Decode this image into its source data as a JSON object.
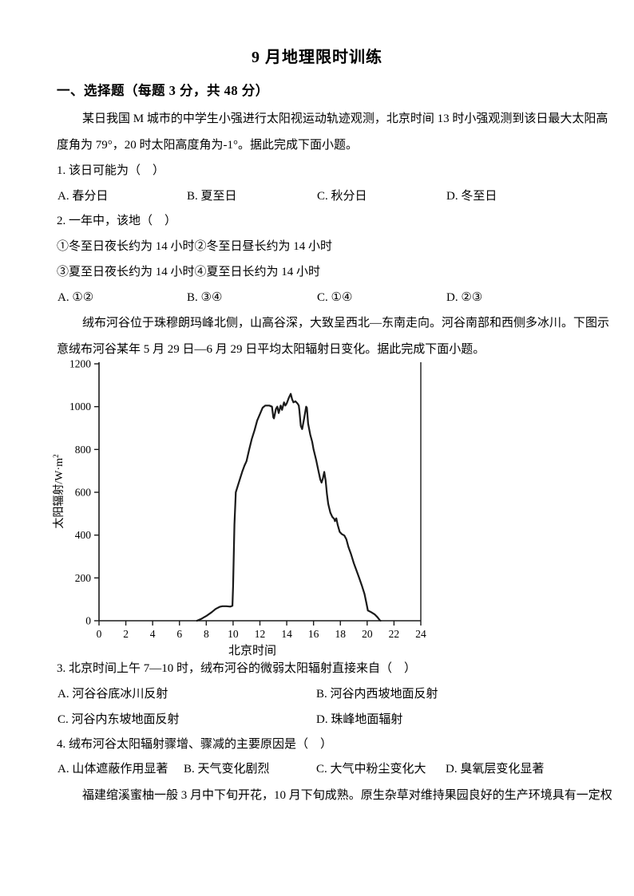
{
  "document": {
    "title": "9 月地理限时训练",
    "section_heading": "一、选择题（每题 3 分，共 48 分）",
    "passage1": {
      "line1": "某日我国 M 城市的中学生小强进行太阳视运动轨迹观测，北京时间 13 时小强观测到该日最大太阳高",
      "line2": "度角为 79°，20 时太阳高度角为-1°。据此完成下面小题。"
    },
    "question1": {
      "stem": "1. 该日可能为（　）",
      "options": [
        "A. 春分日",
        "B. 夏至日",
        "C. 秋分日",
        "D. 冬至日"
      ]
    },
    "question2": {
      "stem": "2. 一年中，该地（　）",
      "statements": [
        "①冬至日夜长约为 14 小时②冬至日昼长约为 14 小时",
        "③夏至日夜长约为 14 小时④夏至日长约为 14 小时"
      ],
      "options": [
        "A. ①②",
        "B. ③④",
        "C. ①④",
        "D. ②③"
      ]
    },
    "passage2": {
      "line1": "绒布河谷位于珠穆朗玛峰北侧，山高谷深，大致呈西北—东南走向。河谷南部和西侧多冰川。下图示",
      "line2": "意绒布河谷某年 5 月 29 日—6 月 29 日平均太阳辐射日变化。据此完成下面小题。"
    },
    "question3": {
      "stem": "3. 北京时间上午 7—10 时，绒布河谷的微弱太阳辐射直接来自（　）",
      "options": [
        "A. 河谷谷底冰川反射",
        "B. 河谷内西坡地面反射",
        "C. 河谷内东坡地面反射",
        "D. 珠峰地面辐射"
      ]
    },
    "question4": {
      "stem": "4. 绒布河谷太阳辐射骤增、骤减的主要原因是（　）",
      "options": [
        "A. 山体遮蔽作用显著",
        "B. 天气变化剧烈",
        "C. 大气中粉尘变化大",
        "D. 臭氧层变化显著"
      ]
    },
    "passage3": {
      "line1": "福建绾溪蜜柚一般 3 月中下旬开花，10 月下旬成熟。原生杂草对维持果园良好的生产环境具有一定权"
    }
  },
  "chart_data": {
    "type": "line",
    "title": "",
    "xlabel": "北京时间",
    "ylabel_base": "太阳辐射/W·m",
    "ylabel_sup": "2",
    "xlim": [
      0,
      24
    ],
    "ylim": [
      0,
      1200
    ],
    "xticks": [
      0,
      2,
      4,
      6,
      8,
      10,
      12,
      14,
      16,
      18,
      20,
      22,
      24
    ],
    "yticks": [
      0,
      200,
      400,
      600,
      800,
      1000,
      1200
    ],
    "grid": false,
    "legend": false,
    "line_color": "#1a1a1a",
    "series": [
      {
        "name": "5月29日—6月29日平均太阳辐射日变化",
        "points": [
          [
            7.3,
            0
          ],
          [
            7.6,
            8
          ],
          [
            8.0,
            22
          ],
          [
            8.4,
            40
          ],
          [
            8.7,
            55
          ],
          [
            9.0,
            65
          ],
          [
            9.2,
            68
          ],
          [
            9.5,
            68
          ],
          [
            9.8,
            66
          ],
          [
            9.95,
            70
          ],
          [
            10.0,
            160
          ],
          [
            10.1,
            450
          ],
          [
            10.2,
            600
          ],
          [
            10.35,
            630
          ],
          [
            10.5,
            660
          ],
          [
            10.7,
            700
          ],
          [
            10.85,
            725
          ],
          [
            11.0,
            745
          ],
          [
            11.2,
            800
          ],
          [
            11.4,
            850
          ],
          [
            11.6,
            890
          ],
          [
            11.8,
            935
          ],
          [
            12.0,
            965
          ],
          [
            12.2,
            995
          ],
          [
            12.4,
            1005
          ],
          [
            12.7,
            1005
          ],
          [
            12.9,
            1000
          ],
          [
            13.0,
            950
          ],
          [
            13.05,
            945
          ],
          [
            13.2,
            990
          ],
          [
            13.3,
            1000
          ],
          [
            13.4,
            970
          ],
          [
            13.55,
            1005
          ],
          [
            13.65,
            985
          ],
          [
            13.8,
            1020
          ],
          [
            13.9,
            1005
          ],
          [
            14.0,
            1015
          ],
          [
            14.15,
            1040
          ],
          [
            14.3,
            1060
          ],
          [
            14.4,
            1035
          ],
          [
            14.5,
            1020
          ],
          [
            14.65,
            1025
          ],
          [
            14.8,
            1015
          ],
          [
            14.9,
            1005
          ],
          [
            14.95,
            980
          ],
          [
            15.05,
            910
          ],
          [
            15.15,
            895
          ],
          [
            15.3,
            945
          ],
          [
            15.45,
            1000
          ],
          [
            15.5,
            995
          ],
          [
            15.6,
            920
          ],
          [
            15.75,
            870
          ],
          [
            15.9,
            835
          ],
          [
            16.0,
            800
          ],
          [
            16.2,
            750
          ],
          [
            16.35,
            705
          ],
          [
            16.5,
            660
          ],
          [
            16.6,
            645
          ],
          [
            16.7,
            665
          ],
          [
            16.8,
            695
          ],
          [
            16.9,
            655
          ],
          [
            17.0,
            590
          ],
          [
            17.1,
            545
          ],
          [
            17.25,
            505
          ],
          [
            17.4,
            485
          ],
          [
            17.55,
            475
          ],
          [
            17.6,
            465
          ],
          [
            17.7,
            478
          ],
          [
            17.8,
            448
          ],
          [
            17.95,
            415
          ],
          [
            18.1,
            405
          ],
          [
            18.3,
            398
          ],
          [
            18.45,
            380
          ],
          [
            18.6,
            345
          ],
          [
            18.8,
            310
          ],
          [
            19.0,
            270
          ],
          [
            19.2,
            235
          ],
          [
            19.4,
            200
          ],
          [
            19.6,
            165
          ],
          [
            19.8,
            125
          ],
          [
            19.95,
            80
          ],
          [
            20.05,
            48
          ],
          [
            20.3,
            40
          ],
          [
            20.55,
            30
          ],
          [
            20.75,
            18
          ],
          [
            20.95,
            2
          ],
          [
            21.0,
            0
          ]
        ]
      }
    ]
  }
}
